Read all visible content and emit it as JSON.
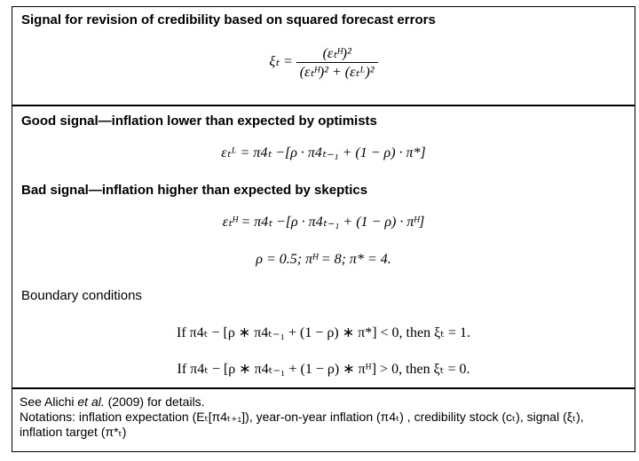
{
  "sections": [
    {
      "title": "Signal for revision of credibility based on squared forecast errors",
      "formula": {
        "lhs": "ξₜ =",
        "numerator": "(εₜᴴ)²",
        "denominator": "(εₜᴴ)² + (εₜᴸ)²"
      }
    },
    {
      "good_heading": "Good signal—inflation lower than expected by optimists",
      "good_formula": "εₜᴸ = π4ₜ −[ρ · π4ₜ₋₁ + (1 − ρ) · π*]",
      "bad_heading": "Bad signal—inflation higher than expected by skeptics",
      "bad_formula": "εₜᴴ = π4ₜ −[ρ · π4ₜ₋₁ + (1 − ρ) · πᴴ]",
      "parameters": "ρ = 0.5; πᴴ = 8; π* = 4.",
      "boundary_heading": "Boundary conditions",
      "conditions": [
        "If π4ₜ − [ρ ∗ π4ₜ₋₁ + (1 − ρ) ∗ π*] < 0, then ξₜ = 1.",
        "If π4ₜ − [ρ ∗ π4ₜ₋₁ + (1 − ρ) ∗ πᴴ] > 0, then  ξₜ = 0."
      ]
    }
  ],
  "footer": {
    "reference": [
      "See Alichi ",
      "et al.",
      " (2009) for details."
    ],
    "notations": "Notations: inflation expectation (Eₜ[π4ₜ₊₁]), year-on-year inflation (π4ₜ) , credibility stock (cₜ), signal (ξₜ), inflation target (π*ₜ)"
  }
}
